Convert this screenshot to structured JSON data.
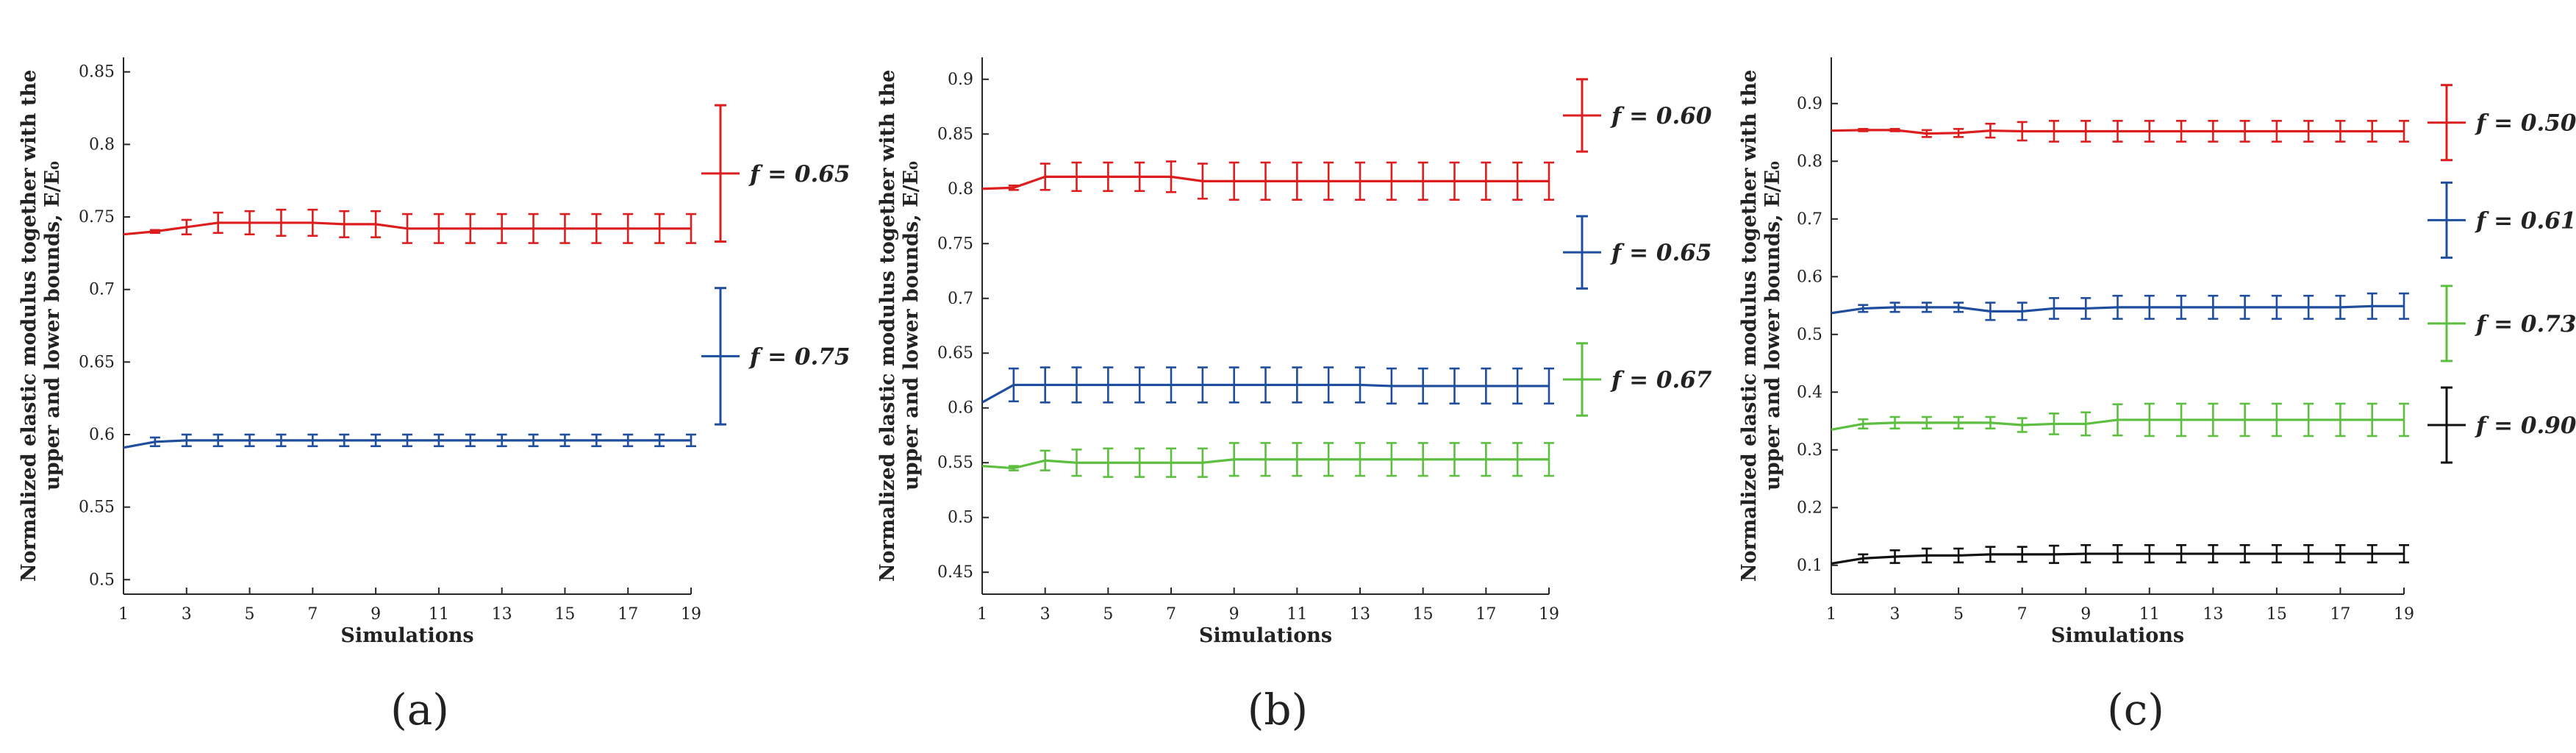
{
  "chart_data": [
    {
      "type": "line",
      "panel_label": "(a)",
      "xlabel": "Simulations",
      "ylabel_line1": "Normalized elastic modulus together with the",
      "ylabel_line2": "upper and lower bounds, E/E₀",
      "xlim": [
        1,
        19
      ],
      "ylim": [
        0.49,
        0.86
      ],
      "x_ticks": [
        1,
        3,
        5,
        7,
        9,
        11,
        13,
        15,
        17,
        19
      ],
      "y_ticks": [
        0.5,
        0.55,
        0.6,
        0.65,
        0.7,
        0.75,
        0.8,
        0.85
      ],
      "y_tick_labels": [
        "0.5",
        "0.55",
        "0.6",
        "0.65",
        "0.7",
        "0.75",
        "0.8",
        "0.85"
      ],
      "x": [
        1,
        2,
        3,
        4,
        5,
        6,
        7,
        8,
        9,
        10,
        11,
        12,
        13,
        14,
        15,
        16,
        17,
        18,
        19
      ],
      "series": [
        {
          "name": "f = 0.65",
          "color": "#dc1e1e",
          "values": [
            0.738,
            0.74,
            0.743,
            0.746,
            0.746,
            0.746,
            0.746,
            0.745,
            0.745,
            0.742,
            0.742,
            0.742,
            0.742,
            0.742,
            0.742,
            0.742,
            0.742,
            0.742,
            0.742
          ],
          "err": [
            0.0,
            0.001,
            0.005,
            0.007,
            0.008,
            0.009,
            0.009,
            0.009,
            0.009,
            0.01,
            0.01,
            0.01,
            0.01,
            0.01,
            0.01,
            0.01,
            0.01,
            0.01,
            0.01
          ],
          "legend_value": 0.78,
          "legend_err": 0.047
        },
        {
          "name": "f = 0.75",
          "color": "#1f4e9e",
          "values": [
            0.591,
            0.595,
            0.596,
            0.596,
            0.596,
            0.596,
            0.596,
            0.596,
            0.596,
            0.596,
            0.596,
            0.596,
            0.596,
            0.596,
            0.596,
            0.596,
            0.596,
            0.596,
            0.596
          ],
          "err": [
            0.0,
            0.003,
            0.004,
            0.004,
            0.004,
            0.004,
            0.004,
            0.004,
            0.004,
            0.004,
            0.004,
            0.004,
            0.004,
            0.004,
            0.004,
            0.004,
            0.004,
            0.004,
            0.004
          ],
          "legend_value": 0.654,
          "legend_err": 0.047
        }
      ]
    },
    {
      "type": "line",
      "panel_label": "(b)",
      "xlabel": "Simulations",
      "ylabel_line1": "Normalized elastic modulus together with the",
      "ylabel_line2": "upper and lower bounds, E/E₀",
      "xlim": [
        1,
        19
      ],
      "ylim": [
        0.43,
        0.92
      ],
      "x_ticks": [
        1,
        3,
        5,
        7,
        9,
        11,
        13,
        15,
        17,
        19
      ],
      "y_ticks": [
        0.45,
        0.5,
        0.55,
        0.6,
        0.65,
        0.7,
        0.75,
        0.8,
        0.85,
        0.9
      ],
      "y_tick_labels": [
        "0.45",
        "0.5",
        "0.55",
        "0.6",
        "0.65",
        "0.7",
        "0.75",
        "0.8",
        "0.85",
        "0.9"
      ],
      "x": [
        1,
        2,
        3,
        4,
        5,
        6,
        7,
        8,
        9,
        10,
        11,
        12,
        13,
        14,
        15,
        16,
        17,
        18,
        19
      ],
      "series": [
        {
          "name": "f = 0.60",
          "color": "#dc1e1e",
          "values": [
            0.8,
            0.801,
            0.811,
            0.811,
            0.811,
            0.811,
            0.811,
            0.807,
            0.807,
            0.807,
            0.807,
            0.807,
            0.807,
            0.807,
            0.807,
            0.807,
            0.807,
            0.807,
            0.807
          ],
          "err": [
            0.0,
            0.002,
            0.012,
            0.013,
            0.013,
            0.013,
            0.014,
            0.016,
            0.017,
            0.017,
            0.017,
            0.017,
            0.017,
            0.017,
            0.017,
            0.017,
            0.017,
            0.017,
            0.017
          ],
          "legend_value": 0.867,
          "legend_err": 0.033
        },
        {
          "name": "f = 0.65",
          "color": "#1f4e9e",
          "values": [
            0.605,
            0.621,
            0.621,
            0.621,
            0.621,
            0.621,
            0.621,
            0.621,
            0.621,
            0.621,
            0.621,
            0.621,
            0.621,
            0.62,
            0.62,
            0.62,
            0.62,
            0.62,
            0.62
          ],
          "err": [
            0.0,
            0.015,
            0.016,
            0.016,
            0.016,
            0.016,
            0.016,
            0.016,
            0.016,
            0.016,
            0.016,
            0.016,
            0.016,
            0.016,
            0.016,
            0.016,
            0.016,
            0.016,
            0.016
          ],
          "legend_value": 0.742,
          "legend_err": 0.033
        },
        {
          "name": "f = 0.67",
          "color": "#5cbf3f",
          "values": [
            0.547,
            0.545,
            0.552,
            0.55,
            0.55,
            0.55,
            0.55,
            0.55,
            0.553,
            0.553,
            0.553,
            0.553,
            0.553,
            0.553,
            0.553,
            0.553,
            0.553,
            0.553,
            0.553
          ],
          "err": [
            0.0,
            0.002,
            0.009,
            0.012,
            0.013,
            0.013,
            0.013,
            0.013,
            0.015,
            0.015,
            0.015,
            0.015,
            0.015,
            0.015,
            0.015,
            0.015,
            0.015,
            0.015,
            0.015
          ],
          "legend_value": 0.626,
          "legend_err": 0.033
        }
      ]
    },
    {
      "type": "line",
      "panel_label": "(c)",
      "xlabel": "Simulations",
      "ylabel_line1": "Normalized elastic modulus together with the",
      "ylabel_line2": "upper and lower bounds, E/E₀",
      "xlim": [
        1,
        19
      ],
      "ylim": [
        0.05,
        0.98
      ],
      "x_ticks": [
        1,
        3,
        5,
        7,
        9,
        11,
        13,
        15,
        17,
        19
      ],
      "y_ticks": [
        0.1,
        0.2,
        0.3,
        0.4,
        0.5,
        0.6,
        0.7,
        0.8,
        0.9
      ],
      "y_tick_labels": [
        "0.1",
        "0.2",
        "0.3",
        "0.4",
        "0.5",
        "0.6",
        "0.7",
        "0.8",
        "0.9"
      ],
      "x": [
        1,
        2,
        3,
        4,
        5,
        6,
        7,
        8,
        9,
        10,
        11,
        12,
        13,
        14,
        15,
        16,
        17,
        18,
        19
      ],
      "series": [
        {
          "name": "f = 0.50",
          "color": "#dc1e1e",
          "values": [
            0.853,
            0.854,
            0.854,
            0.848,
            0.849,
            0.853,
            0.852,
            0.852,
            0.852,
            0.852,
            0.852,
            0.852,
            0.852,
            0.852,
            0.852,
            0.852,
            0.852,
            0.852,
            0.852
          ],
          "err": [
            0.0,
            0.002,
            0.002,
            0.006,
            0.007,
            0.012,
            0.016,
            0.018,
            0.018,
            0.018,
            0.018,
            0.018,
            0.018,
            0.018,
            0.018,
            0.018,
            0.018,
            0.018,
            0.018
          ],
          "legend_value": 0.867,
          "legend_err": 0.065
        },
        {
          "name": "f = 0.61",
          "color": "#1f4e9e",
          "values": [
            0.537,
            0.545,
            0.547,
            0.547,
            0.547,
            0.54,
            0.54,
            0.545,
            0.545,
            0.547,
            0.547,
            0.547,
            0.547,
            0.547,
            0.547,
            0.547,
            0.547,
            0.549,
            0.549
          ],
          "err": [
            0.0,
            0.006,
            0.008,
            0.008,
            0.008,
            0.015,
            0.015,
            0.018,
            0.018,
            0.02,
            0.02,
            0.02,
            0.02,
            0.02,
            0.02,
            0.02,
            0.02,
            0.022,
            0.022
          ],
          "legend_value": 0.698,
          "legend_err": 0.065
        },
        {
          "name": "f = 0.73",
          "color": "#5cbf3f",
          "values": [
            0.335,
            0.345,
            0.347,
            0.347,
            0.347,
            0.347,
            0.343,
            0.345,
            0.345,
            0.352,
            0.352,
            0.352,
            0.352,
            0.352,
            0.352,
            0.352,
            0.352,
            0.352,
            0.352
          ],
          "err": [
            0.0,
            0.008,
            0.01,
            0.01,
            0.01,
            0.01,
            0.012,
            0.018,
            0.02,
            0.027,
            0.028,
            0.028,
            0.028,
            0.028,
            0.028,
            0.028,
            0.028,
            0.028,
            0.028
          ],
          "legend_value": 0.519,
          "legend_err": 0.065
        },
        {
          "name": "f = 0.90",
          "color": "#111111",
          "values": [
            0.103,
            0.112,
            0.115,
            0.117,
            0.117,
            0.119,
            0.119,
            0.119,
            0.12,
            0.12,
            0.12,
            0.12,
            0.12,
            0.12,
            0.12,
            0.12,
            0.12,
            0.12,
            0.12
          ],
          "err": [
            0.0,
            0.007,
            0.011,
            0.012,
            0.012,
            0.013,
            0.013,
            0.015,
            0.015,
            0.015,
            0.015,
            0.015,
            0.015,
            0.015,
            0.015,
            0.015,
            0.015,
            0.015,
            0.015
          ],
          "legend_value": 0.343,
          "legend_err": 0.065
        }
      ]
    }
  ]
}
